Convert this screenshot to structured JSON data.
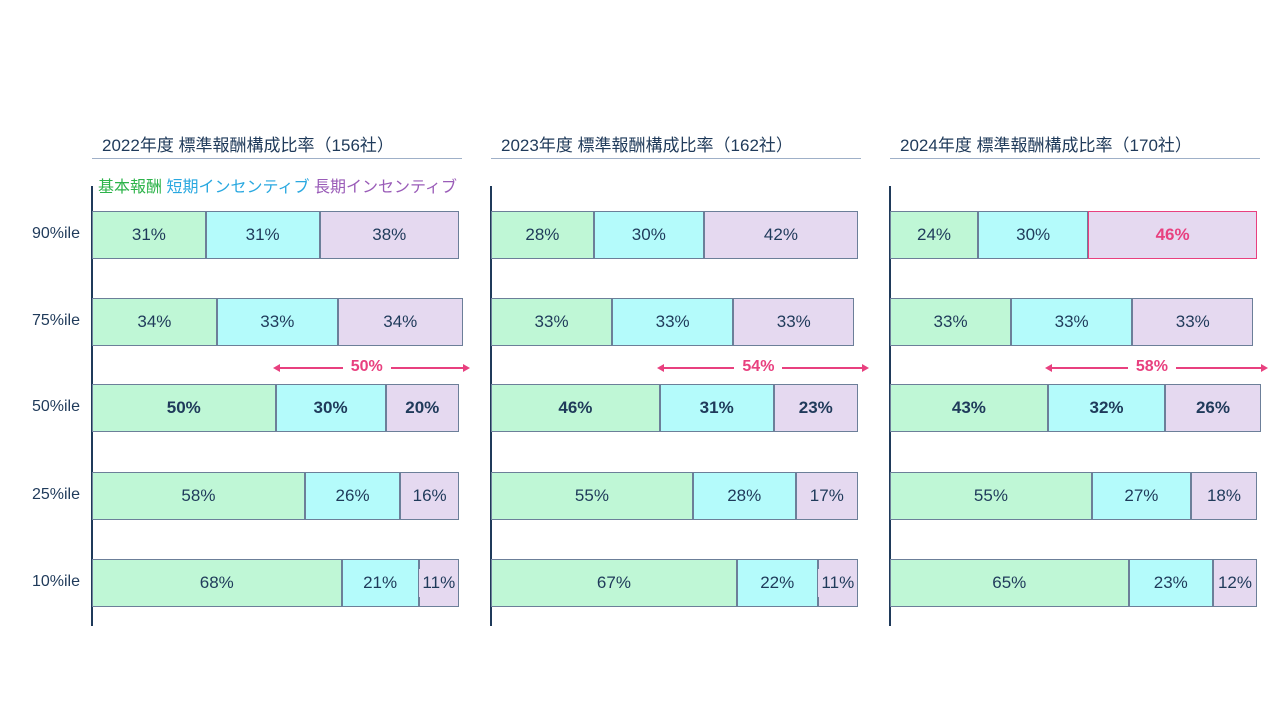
{
  "legend": {
    "base": "基本報酬",
    "short": "短期インセンティブ",
    "long": "長期インセンティブ"
  },
  "colors": {
    "base": "#bff7d6",
    "short": "#b4fbfb",
    "long": "#e5d9f0",
    "legend_base": "#2db34a",
    "legend_short": "#29a8e0",
    "legend_long": "#9a5cb8",
    "highlight": "#e8407f"
  },
  "chart_data": {
    "type": "bar",
    "stacked": true,
    "orientation": "horizontal",
    "categories": [
      "90%ile",
      "75%ile",
      "50%ile",
      "25%ile",
      "10%ile"
    ],
    "panels": [
      {
        "title": "2022年度 標準報酬構成比率（156社）",
        "series": [
          {
            "name": "基本報酬",
            "values": [
              31,
              34,
              50,
              58,
              68
            ]
          },
          {
            "name": "短期インセンティブ",
            "values": [
              31,
              33,
              30,
              26,
              21
            ]
          },
          {
            "name": "長期インセンティブ",
            "values": [
              38,
              34,
              20,
              16,
              11
            ]
          }
        ],
        "annotation": "50%"
      },
      {
        "title": "2023年度  標準報酬構成比率（162社）",
        "series": [
          {
            "name": "基本報酬",
            "values": [
              28,
              33,
              46,
              55,
              67
            ]
          },
          {
            "name": "短期インセンティブ",
            "values": [
              30,
              33,
              31,
              28,
              22
            ]
          },
          {
            "name": "長期インセンティブ",
            "values": [
              42,
              33,
              23,
              17,
              11
            ]
          }
        ],
        "annotation": "54%"
      },
      {
        "title": "2024年度  標準報酬構成比率（170社）",
        "series": [
          {
            "name": "基本報酬",
            "values": [
              24,
              33,
              43,
              55,
              65
            ]
          },
          {
            "name": "短期インセンティブ",
            "values": [
              30,
              33,
              32,
              27,
              23
            ]
          },
          {
            "name": "長期インセンティブ",
            "values": [
              46,
              33,
              26,
              18,
              12
            ]
          }
        ],
        "annotation": "58%",
        "highlight": {
          "row": 0,
          "series": 2
        }
      }
    ]
  }
}
